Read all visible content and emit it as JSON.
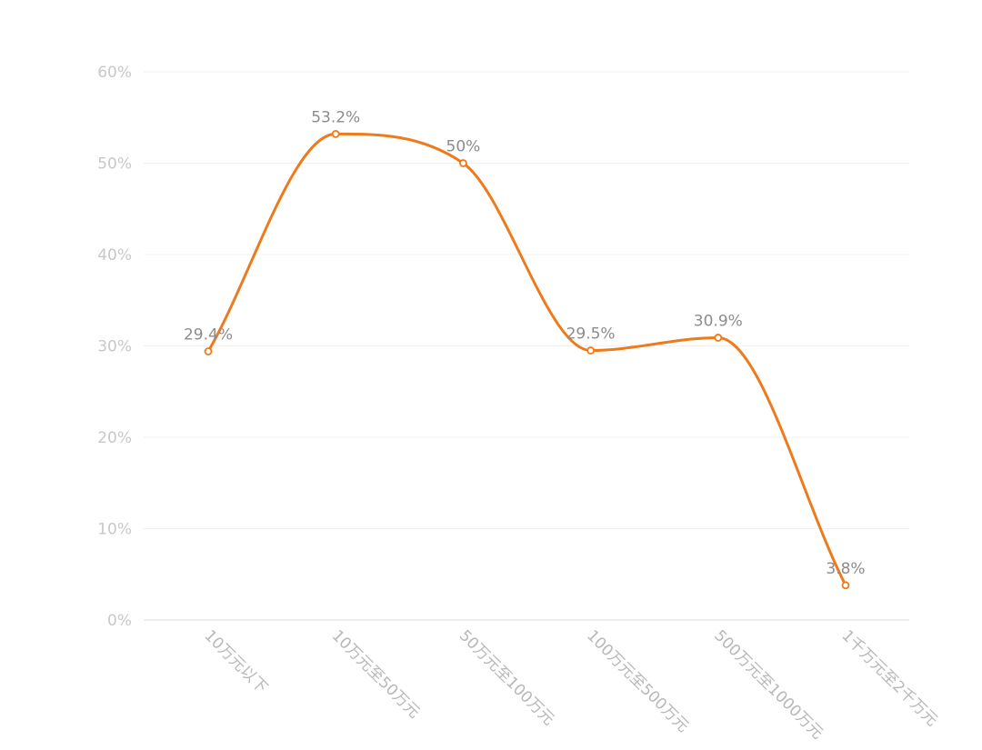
{
  "chart_data": {
    "type": "line",
    "categories": [
      "10万元以下",
      "10万元至50万元",
      "50万元至100万元",
      "100万元至500万元",
      "500万元至1000万元",
      "1千万元至2千万元"
    ],
    "series": [
      {
        "values": [
          29.4,
          53.2,
          50,
          29.5,
          30.9,
          3.8
        ]
      }
    ],
    "data_labels": [
      "29.4%",
      "53.2%",
      "50%",
      "29.5%",
      "30.9%",
      "3.8%"
    ],
    "y_ticks": [
      "0%",
      "10%",
      "20%",
      "30%",
      "40%",
      "50%",
      "60%"
    ],
    "ylim": [
      0,
      60
    ],
    "grid": true,
    "smooth": true,
    "line_color": "#ee7a1c"
  }
}
